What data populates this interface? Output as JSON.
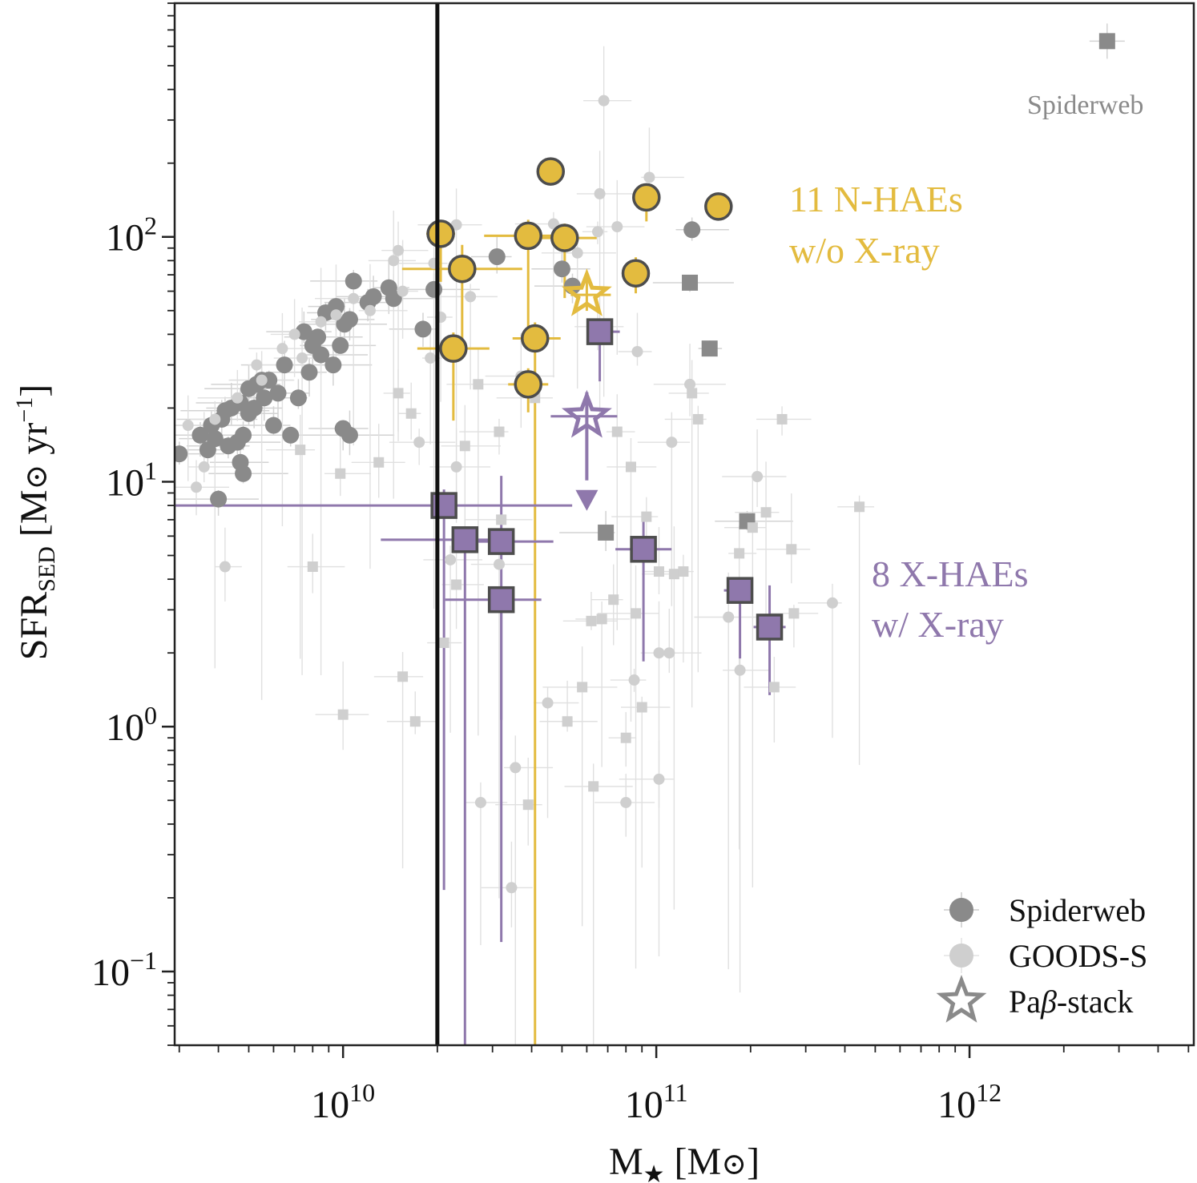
{
  "chart_data": {
    "type": "scatter",
    "xscale": "log",
    "yscale": "log",
    "xlim": [
      2900000000.0,
      5200000000000.0
    ],
    "ylim": [
      0.05,
      900
    ],
    "xlabel": {
      "main": "M",
      "sub": "★",
      "unit_open": " [M",
      "unit_sub": "⊙",
      "unit_close": "]"
    },
    "ylabel": {
      "main": "SFR",
      "sub": "SED",
      "unit_open": " [M",
      "unit_sub": "⊙",
      "unit_mid": " yr",
      "unit_sup": "−1",
      "unit_close": "]"
    },
    "xticks": [
      {
        "value": 10000000000.0,
        "base": "10",
        "exp": "10"
      },
      {
        "value": 100000000000.0,
        "base": "10",
        "exp": "11"
      },
      {
        "value": 1000000000000.0,
        "base": "10",
        "exp": "12"
      }
    ],
    "yticks": [
      {
        "value": 0.1,
        "base": "10",
        "exp": "−1"
      },
      {
        "value": 1,
        "base": "10",
        "exp": "0"
      },
      {
        "value": 10,
        "base": "10",
        "exp": "1"
      },
      {
        "value": 100,
        "base": "10",
        "exp": "2"
      }
    ],
    "mass_cut": 20000000000.0,
    "colors": {
      "spiderweb": "#8a8a8a",
      "goods": "#cfcfcf",
      "nhae": "#e3bb3f",
      "xhae": "#8f78ac",
      "edge": "#4d4d4d",
      "axis": "#000000"
    },
    "series": [
      {
        "name": "Spiderweb",
        "marker": "circle",
        "points": [
          [
            3000000000.0,
            13
          ],
          [
            3500000000.0,
            15.5
          ],
          [
            3700000000.0,
            13.5
          ],
          [
            3800000000.0,
            17
          ],
          [
            3900000000.0,
            15
          ],
          [
            4000000000.0,
            8.5
          ],
          [
            4100000000.0,
            18
          ],
          [
            4200000000.0,
            19.5
          ],
          [
            4300000000.0,
            14
          ],
          [
            4400000000.0,
            20
          ],
          [
            4600000000.0,
            14.5
          ],
          [
            4700000000.0,
            12
          ],
          [
            4700000000.0,
            21
          ],
          [
            4800000000.0,
            10.8
          ],
          [
            4800000000.0,
            15.5
          ],
          [
            5000000000.0,
            19
          ],
          [
            5000000000.0,
            24
          ],
          [
            5200000000.0,
            20
          ],
          [
            5300000000.0,
            25
          ],
          [
            5500000000.0,
            26
          ],
          [
            5600000000.0,
            22
          ],
          [
            5800000000.0,
            26
          ],
          [
            6000000000.0,
            17
          ],
          [
            6200000000.0,
            23
          ],
          [
            6500000000.0,
            30
          ],
          [
            6800000000.0,
            15.5
          ],
          [
            7200000000.0,
            22
          ],
          [
            7500000000.0,
            41
          ],
          [
            7800000000.0,
            28
          ],
          [
            8000000000.0,
            36
          ],
          [
            8300000000.0,
            39
          ],
          [
            8500000000.0,
            33
          ],
          [
            8800000000.0,
            49
          ],
          [
            9300000000.0,
            30
          ],
          [
            9500000000.0,
            52
          ],
          [
            9800000000.0,
            36
          ],
          [
            10100000000.0,
            44
          ],
          [
            10500000000.0,
            46
          ],
          [
            10800000000.0,
            66
          ],
          [
            12000000000.0,
            54
          ],
          [
            12500000000.0,
            57
          ],
          [
            14000000000.0,
            62
          ],
          [
            14500000000.0,
            56
          ],
          [
            18000000000.0,
            42
          ],
          [
            19500000000.0,
            61
          ],
          [
            31000000000.0,
            83
          ],
          [
            50000000000.0,
            74
          ],
          [
            54000000000.0,
            63
          ],
          [
            130000000000.0,
            107
          ],
          [
            10000000000.0,
            16.5
          ],
          [
            10500000000.0,
            15.5
          ]
        ]
      },
      {
        "name": "Spiderweb",
        "marker": "square",
        "points": [
          [
            69000000000.0,
            6.2
          ],
          [
            128000000000.0,
            65
          ],
          [
            148000000000.0,
            35
          ],
          [
            195000000000.0,
            6.9
          ],
          [
            2750000000000.0,
            630
          ]
        ]
      },
      {
        "name": "GOODS-S",
        "marker": "circle",
        "points": [
          [
            3200000000.0,
            17
          ],
          [
            3400000000.0,
            9.5
          ],
          [
            3600000000.0,
            11.5
          ],
          [
            3900000000.0,
            18
          ],
          [
            4200000000.0,
            4.5
          ],
          [
            4600000000.0,
            22
          ],
          [
            5300000000.0,
            30
          ],
          [
            5500000000.0,
            26
          ],
          [
            6400000000.0,
            35
          ],
          [
            7000000000.0,
            40
          ],
          [
            7400000000.0,
            32
          ],
          [
            8500000000.0,
            45
          ],
          [
            9500000000.0,
            48
          ],
          [
            10800000000.0,
            56
          ],
          [
            12200000000.0,
            50
          ],
          [
            14500000000.0,
            80
          ],
          [
            15000000000.0,
            88
          ],
          [
            15500000000.0,
            60
          ],
          [
            17500000000.0,
            14.5
          ],
          [
            19000000000.0,
            32
          ],
          [
            19500000000.0,
            78
          ],
          [
            20500000000.0,
            47
          ],
          [
            22000000000.0,
            4.8
          ],
          [
            23000000000.0,
            112
          ],
          [
            25500000000.0,
            57
          ],
          [
            27500000000.0,
            0.49
          ],
          [
            31500000000.0,
            4.6
          ],
          [
            34500000000.0,
            0.22
          ],
          [
            35500000000.0,
            0.68
          ],
          [
            37000000000.0,
            27
          ],
          [
            45000000000.0,
            1.25
          ],
          [
            47000000000.0,
            113
          ],
          [
            56000000000.0,
            86
          ],
          [
            65000000000.0,
            43
          ],
          [
            65000000000.0,
            105
          ],
          [
            66000000000.0,
            150
          ],
          [
            68000000000.0,
            360
          ],
          [
            75000000000.0,
            110
          ],
          [
            80000000000.0,
            0.49
          ],
          [
            85000000000.0,
            1.55
          ],
          [
            87000000000.0,
            34
          ],
          [
            95000000000.0,
            175
          ],
          [
            102000000000.0,
            2.0
          ],
          [
            102000000000.0,
            0.61
          ],
          [
            110000000000.0,
            2.0
          ],
          [
            112000000000.0,
            14.5
          ],
          [
            128000000000.0,
            25
          ],
          [
            170000000000.0,
            2.8
          ],
          [
            185000000000.0,
            1.7
          ],
          [
            210000000000.0,
            10.5
          ],
          [
            365000000000.0,
            3.2
          ],
          [
            23000000000.0,
            11.5
          ]
        ]
      },
      {
        "name": "GOODS-S",
        "marker": "square",
        "points": [
          [
            7300000000.0,
            13.5
          ],
          [
            8000000000.0,
            4.5
          ],
          [
            9800000000.0,
            10.8
          ],
          [
            10000000000.0,
            1.12
          ],
          [
            13000000000.0,
            12
          ],
          [
            15000000000.0,
            23
          ],
          [
            15500000000.0,
            1.6
          ],
          [
            16500000000.0,
            19
          ],
          [
            17000000000.0,
            1.05
          ],
          [
            21000000000.0,
            2.2
          ],
          [
            23000000000.0,
            3.8
          ],
          [
            24500000000.0,
            14
          ],
          [
            27000000000.0,
            25
          ],
          [
            31500000000.0,
            16
          ],
          [
            32000000000.0,
            7
          ],
          [
            39000000000.0,
            0.48
          ],
          [
            41000000000.0,
            22
          ],
          [
            52000000000.0,
            1.05
          ],
          [
            58000000000.0,
            1.45
          ],
          [
            62000000000.0,
            2.7
          ],
          [
            63000000000.0,
            0.57
          ],
          [
            67000000000.0,
            2.75
          ],
          [
            73000000000.0,
            3.3
          ],
          [
            75000000000.0,
            16
          ],
          [
            80000000000.0,
            0.9
          ],
          [
            83000000000.0,
            11.5
          ],
          [
            86000000000.0,
            2.9
          ],
          [
            90000000000.0,
            1.2
          ],
          [
            93000000000.0,
            7.2
          ],
          [
            102000000000.0,
            4.3
          ],
          [
            114000000000.0,
            4.2
          ],
          [
            122000000000.0,
            4.3
          ],
          [
            130000000000.0,
            23
          ],
          [
            136000000000.0,
            18
          ],
          [
            184000000000.0,
            5.1
          ],
          [
            203000000000.0,
            6.5
          ],
          [
            224000000000.0,
            7.5
          ],
          [
            238000000000.0,
            1.45
          ],
          [
            252000000000.0,
            18
          ],
          [
            270000000000.0,
            5.3
          ],
          [
            275000000000.0,
            2.9
          ],
          [
            445000000000.0,
            7.9
          ]
        ]
      },
      {
        "name": "11 N-HAEs w/o X-ray",
        "marker": "circle",
        "points": [
          [
            46000000000.0,
            185
          ],
          [
            93000000000.0,
            145
          ],
          [
            158000000000.0,
            133
          ],
          [
            20500000000.0,
            103
          ],
          [
            39000000000.0,
            101
          ],
          [
            51000000000.0,
            99
          ],
          [
            24000000000.0,
            74
          ],
          [
            86000000000.0,
            71
          ],
          [
            41000000000.0,
            38.5
          ],
          [
            22500000000.0,
            35
          ],
          [
            39000000000.0,
            25
          ]
        ]
      },
      {
        "name": "8 X-HAEs w/ X-ray",
        "marker": "square",
        "points": [
          [
            66000000000.0,
            41
          ],
          [
            21000000000.0,
            8
          ],
          [
            24500000000.0,
            5.8
          ],
          [
            32000000000.0,
            5.7
          ],
          [
            32000000000.0,
            3.3
          ],
          [
            91000000000.0,
            5.3
          ],
          [
            185000000000.0,
            3.6
          ],
          [
            230000000000.0,
            2.55
          ]
        ]
      },
      {
        "name": "Paβ-stack (N-HAEs)",
        "marker": "star",
        "points": [
          [
            60000000000.0,
            58
          ]
        ]
      },
      {
        "name": "Paβ-stack (X-HAEs, upper limit)",
        "marker": "star",
        "points": [
          [
            60000000000.0,
            18.5
          ]
        ]
      }
    ],
    "annotations": [
      {
        "text": "11 N-HAEs",
        "color": "nhae"
      },
      {
        "text": "w/o X-ray",
        "color": "nhae"
      },
      {
        "text": "8 X-HAEs",
        "color": "xhae"
      },
      {
        "text": "w/ X-ray",
        "color": "xhae"
      },
      {
        "text": "Spiderweb",
        "color": "spiderweb"
      }
    ],
    "legend": {
      "position": "bottom-right",
      "entries": [
        {
          "label": "Spiderweb",
          "marker": "circle",
          "color": "spiderweb"
        },
        {
          "label": "GOODS-S",
          "marker": "circle",
          "color": "goods"
        },
        {
          "label_prefix": "Pa",
          "label_greek": "β",
          "label_suffix": "-stack",
          "marker": "star",
          "color": "spiderweb"
        }
      ]
    }
  }
}
